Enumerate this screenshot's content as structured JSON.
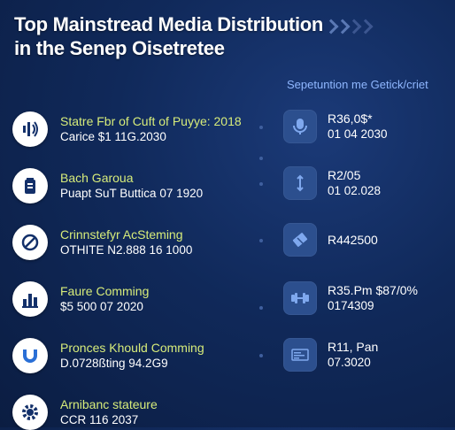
{
  "header": {
    "title_line1": "Top Mainstread Media Distribution",
    "title_line2": "in the Senep Oisetretee"
  },
  "right_column_header": "Sepetuntion me Getick/criet",
  "left_items": [
    {
      "icon": "speaker-sound-icon",
      "line1": "Statre Fbr of Cuft of Puyye: 2018",
      "line2": "Carice $1 11G.2030"
    },
    {
      "icon": "battery-icon",
      "line1": "Bach Garoua",
      "line2": "Puapt SuT Buttica 07 1920"
    },
    {
      "icon": "no-entry-icon",
      "line1": "Crinnstefyr AcSteming",
      "line2": "OTHITE N2.888 16 1000"
    },
    {
      "icon": "bar-chart-icon",
      "line1": "Faure Comming",
      "line2": "$5 500 07 2020"
    },
    {
      "icon": "magnet-icon",
      "line1": "Pronces Khould Comming",
      "line2": "D.0728ßting 94.2G9"
    },
    {
      "icon": "gear-icon",
      "line1": "Arnibanc stateure",
      "line2": "CCR 116 2037"
    }
  ],
  "right_items": [
    {
      "icon": "microphone-icon",
      "line1": "R36,0$*",
      "line2": "01 04 2030"
    },
    {
      "icon": "antenna-icon",
      "line1": "R2/05",
      "line2": "01 02.028"
    },
    {
      "icon": "ticket-icon",
      "line1": "R442500",
      "line2": ""
    },
    {
      "icon": "dumbbell-icon",
      "line1": "R35.Pm $87/0%",
      "line2": "0174309"
    },
    {
      "icon": "card-icon",
      "line1": "R11, Pan",
      "line2": "07.3020"
    }
  ],
  "colors": {
    "background": "#10295a",
    "accent_text": "#d7ec7a",
    "right_header": "#8fb7ff",
    "icon_dark": "#13306a",
    "icon_light": "#7fa8ee"
  }
}
